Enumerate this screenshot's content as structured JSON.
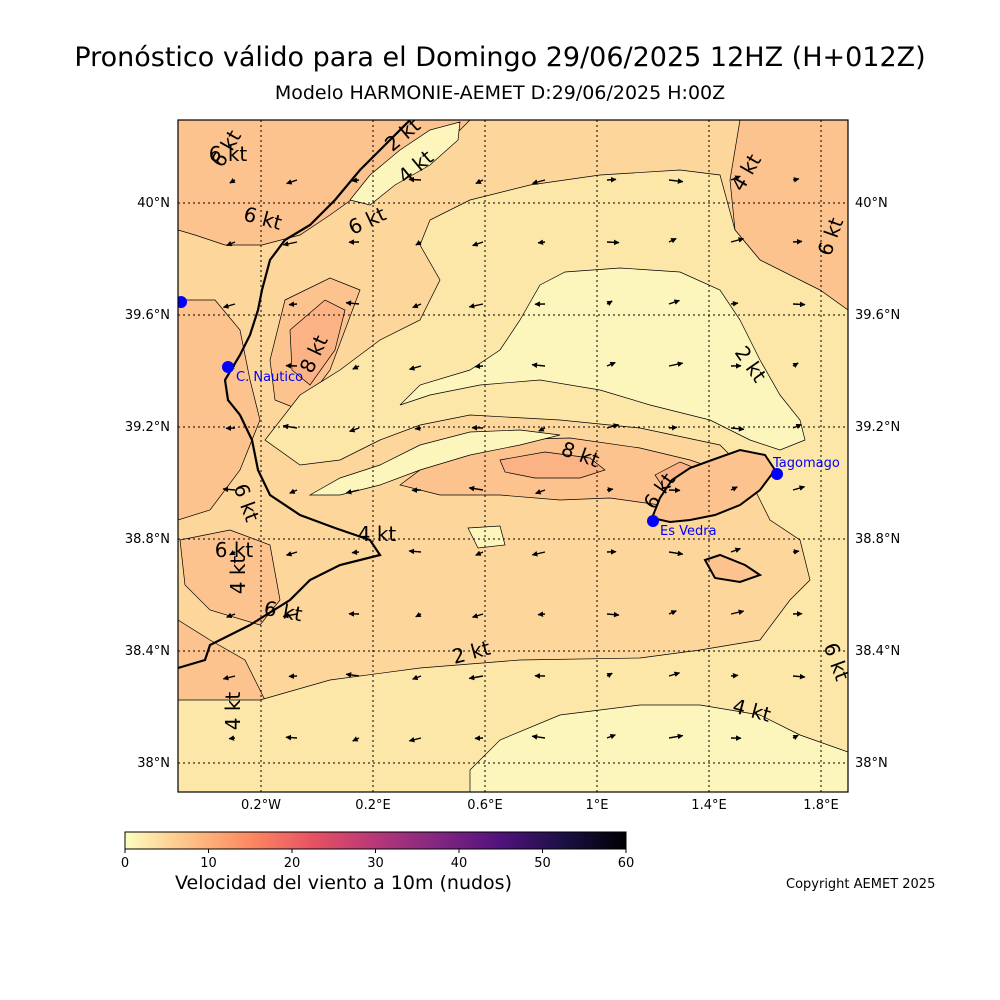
{
  "header": {
    "title": "Pronóstico válido para el Domingo 29/06/2025 12HZ (H+012Z)",
    "subtitle": "Modelo HARMONIE-AEMET D:29/06/2025 H:00Z"
  },
  "map": {
    "lat_ticks": [
      "40°N",
      "39.6°N",
      "39.2°N",
      "38.8°N",
      "38.4°N",
      "38°N"
    ],
    "lon_ticks": [
      "0.2°W",
      "0.2°E",
      "0.6°E",
      "1°E",
      "1.4°E",
      "1.8°E"
    ],
    "contour_labels": [
      "6 kt",
      "2 kt",
      "4 kt",
      "6 kt",
      "6 kt",
      "4 kt",
      "6 kt",
      "8 kt",
      "2 kt",
      "8 kt",
      "6 kt",
      "6 kt",
      "6 kt",
      "4 kt",
      "4 kt",
      "6 kt",
      "4 kt",
      "2 kt",
      "4 kt",
      "6 kt",
      "6 kt"
    ],
    "stations": [
      {
        "name": "C. Nautico"
      },
      {
        "name": "Tagomago"
      },
      {
        "name": "Es Vedra"
      },
      {
        "name": ""
      }
    ],
    "colors": {
      "band_0_2": "#fcf6bd",
      "band_2_4": "#fce6a8",
      "band_4_6": "#fdd69b",
      "band_6_8": "#fcc38f",
      "band_8_10": "#fbb386",
      "station": "#0000ff",
      "coast": "#000000"
    }
  },
  "colorbar": {
    "ticks": [
      "0",
      "10",
      "20",
      "30",
      "40",
      "50",
      "60"
    ],
    "colormap": "magma_r",
    "stops": [
      "#fcfdbf",
      "#fec287",
      "#fc8961",
      "#e75263",
      "#b73779",
      "#822681",
      "#51127c",
      "#1c1044",
      "#000004"
    ],
    "label": "Velocidad del viento a 10m (nudos)"
  },
  "footer": {
    "copyright": "Copyright AEMET 2025"
  }
}
